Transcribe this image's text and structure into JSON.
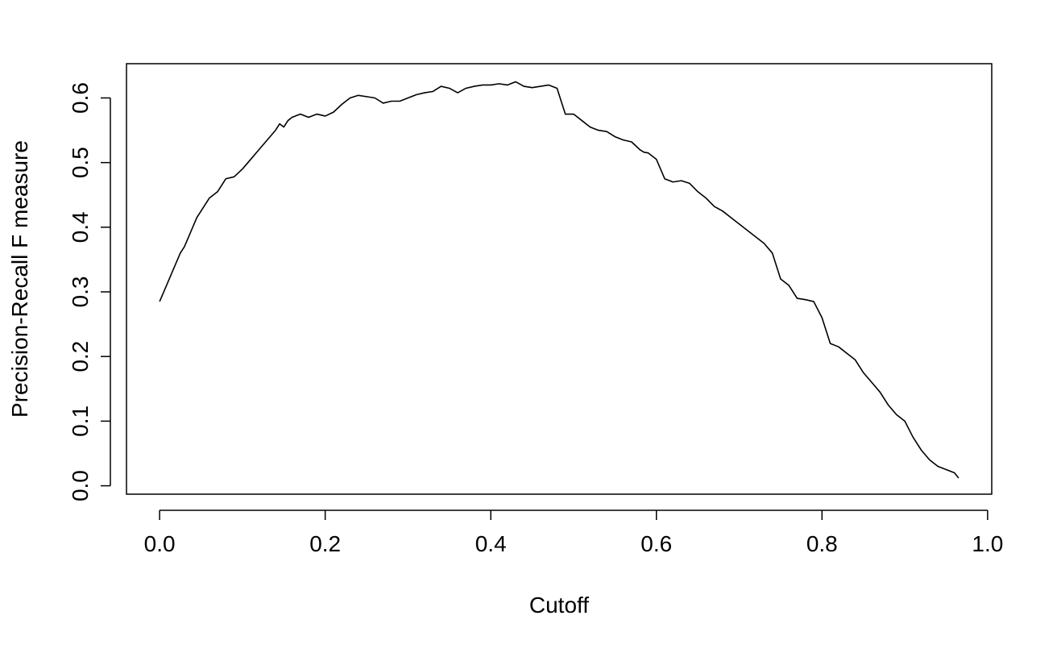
{
  "chart_data": {
    "type": "line",
    "title": "",
    "xlabel": "Cutoff",
    "ylabel": "Precision-Recall F measure",
    "xlim": [
      -0.04,
      1.005
    ],
    "ylim": [
      -0.013,
      0.653
    ],
    "xticks": [
      0.0,
      0.2,
      0.4,
      0.6,
      0.8,
      1.0
    ],
    "xtick_labels": [
      "0.0",
      "0.2",
      "0.4",
      "0.6",
      "0.8",
      "1.0"
    ],
    "yticks": [
      0.0,
      0.1,
      0.2,
      0.3,
      0.4,
      0.5,
      0.6
    ],
    "ytick_labels": [
      "0.0",
      "0.1",
      "0.2",
      "0.3",
      "0.4",
      "0.5",
      "0.6"
    ],
    "grid": false,
    "legend": "none",
    "color": "#000000",
    "series": [
      {
        "x": [
          0.0,
          0.005,
          0.01,
          0.015,
          0.02,
          0.025,
          0.03,
          0.035,
          0.04,
          0.045,
          0.05,
          0.055,
          0.06,
          0.065,
          0.07,
          0.08,
          0.09,
          0.1,
          0.11,
          0.12,
          0.13,
          0.14,
          0.145,
          0.15,
          0.155,
          0.16,
          0.17,
          0.18,
          0.19,
          0.2,
          0.21,
          0.22,
          0.23,
          0.24,
          0.25,
          0.26,
          0.27,
          0.28,
          0.29,
          0.3,
          0.31,
          0.32,
          0.33,
          0.34,
          0.35,
          0.36,
          0.37,
          0.38,
          0.39,
          0.4,
          0.41,
          0.42,
          0.43,
          0.44,
          0.45,
          0.46,
          0.47,
          0.48,
          0.49,
          0.5,
          0.51,
          0.52,
          0.53,
          0.54,
          0.55,
          0.56,
          0.57,
          0.58,
          0.585,
          0.59,
          0.6,
          0.61,
          0.62,
          0.63,
          0.64,
          0.65,
          0.66,
          0.67,
          0.68,
          0.69,
          0.7,
          0.71,
          0.72,
          0.73,
          0.74,
          0.75,
          0.76,
          0.77,
          0.78,
          0.79,
          0.8,
          0.81,
          0.82,
          0.83,
          0.84,
          0.85,
          0.86,
          0.87,
          0.88,
          0.89,
          0.9,
          0.91,
          0.92,
          0.93,
          0.94,
          0.95,
          0.96,
          0.965
        ],
        "y": [
          0.285,
          0.3,
          0.315,
          0.33,
          0.345,
          0.36,
          0.37,
          0.385,
          0.4,
          0.415,
          0.425,
          0.435,
          0.445,
          0.45,
          0.455,
          0.475,
          0.478,
          0.49,
          0.505,
          0.52,
          0.535,
          0.55,
          0.56,
          0.555,
          0.565,
          0.57,
          0.575,
          0.57,
          0.575,
          0.572,
          0.578,
          0.59,
          0.6,
          0.604,
          0.602,
          0.6,
          0.592,
          0.595,
          0.595,
          0.6,
          0.605,
          0.608,
          0.61,
          0.618,
          0.615,
          0.608,
          0.615,
          0.618,
          0.62,
          0.62,
          0.622,
          0.62,
          0.625,
          0.618,
          0.616,
          0.618,
          0.62,
          0.615,
          0.575,
          0.575,
          0.565,
          0.555,
          0.55,
          0.548,
          0.54,
          0.535,
          0.532,
          0.52,
          0.516,
          0.515,
          0.505,
          0.475,
          0.47,
          0.472,
          0.468,
          0.455,
          0.445,
          0.432,
          0.425,
          0.415,
          0.405,
          0.395,
          0.385,
          0.375,
          0.36,
          0.32,
          0.31,
          0.29,
          0.288,
          0.285,
          0.26,
          0.22,
          0.215,
          0.205,
          0.195,
          0.175,
          0.16,
          0.145,
          0.125,
          0.11,
          0.1,
          0.075,
          0.055,
          0.04,
          0.03,
          0.025,
          0.02,
          0.012
        ]
      }
    ]
  }
}
